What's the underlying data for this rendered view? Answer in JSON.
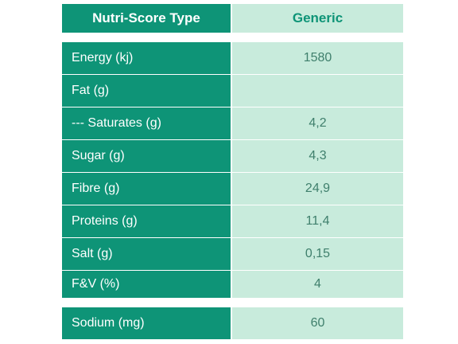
{
  "header": {
    "label": "Nutri-Score Type",
    "value": "Generic"
  },
  "rows": [
    {
      "label": "Energy (kj)",
      "value": "1580"
    },
    {
      "label": "Fat (g)",
      "value": ""
    },
    {
      "label": "--- Saturates (g)",
      "value": "4,2"
    },
    {
      "label": "Sugar (g)",
      "value": "4,3"
    },
    {
      "label": "Fibre (g)",
      "value": "24,9"
    },
    {
      "label": "Proteins (g)",
      "value": "11,4"
    },
    {
      "label": "Salt (g)",
      "value": "0,15"
    },
    {
      "label": "F&V (%)",
      "value": "4"
    }
  ],
  "footer": {
    "label": "Sodium (mg)",
    "value": "60"
  },
  "colors": {
    "label_bg": "#0e9477",
    "value_bg": "#c8ebdc",
    "value_text": "#3f7f6c"
  }
}
